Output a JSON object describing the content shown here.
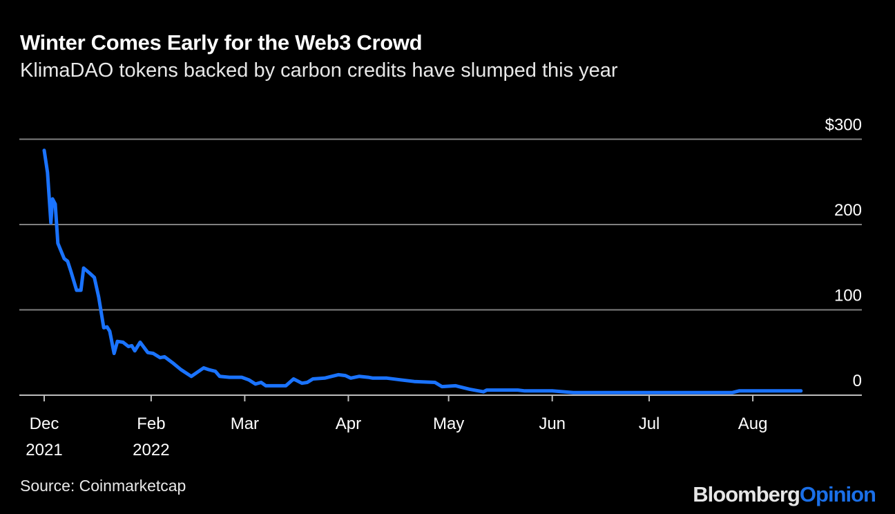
{
  "header": {
    "title": "Winter Comes Early for the Web3 Crowd",
    "subtitle": "KlimaDAO tokens backed by carbon credits have slumped this year"
  },
  "footer": {
    "source": "Source: Coinmarketcap",
    "logo_part1": "Bloomberg",
    "logo_part2": "Opinion"
  },
  "colors": {
    "line": "#1a73ff",
    "grid": "#808080",
    "background": "#000000",
    "logo_accent": "#1a6fe8"
  },
  "chart_data": {
    "type": "line",
    "title": "Winter Comes Early for the Web3 Crowd",
    "xlabel": "",
    "ylabel": "",
    "x_unit": "days since start (Dec 2021)",
    "xlim": [
      -7,
      245
    ],
    "ylim": [
      0,
      300
    ],
    "y_ticks": [
      {
        "value": 300,
        "label": "$300"
      },
      {
        "value": 200,
        "label": "200"
      },
      {
        "value": 100,
        "label": "100"
      },
      {
        "value": 0,
        "label": "0"
      }
    ],
    "x_ticks": [
      {
        "day": 0,
        "label": "Dec",
        "label2": "2021"
      },
      {
        "day": 32,
        "label": "Feb",
        "label2": "2022"
      },
      {
        "day": 60,
        "label": "Mar",
        "label2": ""
      },
      {
        "day": 91,
        "label": "Apr",
        "label2": ""
      },
      {
        "day": 121,
        "label": "May",
        "label2": ""
      },
      {
        "day": 152,
        "label": "Jun",
        "label2": ""
      },
      {
        "day": 181,
        "label": "Jul",
        "label2": ""
      },
      {
        "day": 212,
        "label": "Aug",
        "label2": ""
      }
    ],
    "grid": true,
    "series": [
      {
        "name": "KlimaDAO price ($)",
        "x": [
          0,
          1,
          2,
          2.5,
          3.3,
          4.1,
          6,
          7,
          8,
          9.7,
          11,
          11.8,
          13.6,
          15,
          16.3,
          17.8,
          18.8,
          19.6,
          20.9,
          21.9,
          23.6,
          25.2,
          26.2,
          27.1,
          28.7,
          31,
          32.6,
          34.7,
          36,
          38.4,
          40.9,
          44,
          47.7,
          49.2,
          51.2,
          52.5,
          55.4,
          59.1,
          61.2,
          63.2,
          64.9,
          66.3,
          72.3,
          74.6,
          77.1,
          78.7,
          80.4,
          83.9,
          86,
          88,
          90.1,
          91.7,
          94.2,
          96.9,
          98.3,
          102.5,
          106.6,
          110.7,
          116.9,
          119,
          123.1,
          127.3,
          131.4,
          132.4,
          135.5,
          141.7,
          143.8,
          152,
          158.3,
          205.8,
          207.9,
          226.4
        ],
        "values": [
          287,
          261,
          202,
          230,
          224,
          178,
          160,
          157,
          145,
          123,
          123,
          149,
          143,
          138,
          115,
          79,
          80,
          75,
          49,
          63,
          62,
          57,
          58,
          52,
          62,
          50,
          49,
          44,
          45,
          38,
          30,
          22,
          32,
          30,
          28,
          22,
          21,
          21,
          18,
          13,
          15,
          11,
          11,
          19,
          14,
          15,
          19,
          20,
          22,
          24,
          23,
          20,
          22,
          21,
          20,
          20,
          18,
          16,
          15,
          10,
          11,
          7,
          4,
          6,
          6,
          6,
          5,
          5,
          3,
          3,
          5,
          5
        ]
      }
    ]
  }
}
